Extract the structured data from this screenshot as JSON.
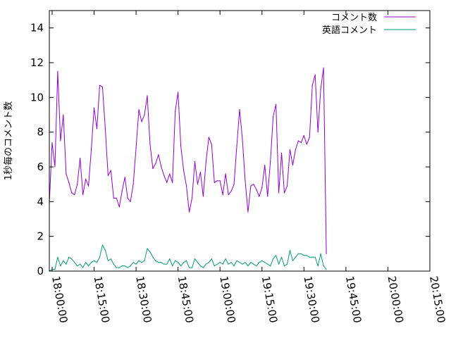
{
  "chart_data": {
    "type": "line",
    "title": "",
    "xlabel": "",
    "ylabel": "1秒毎のコメント数",
    "x_ticks": [
      "18:00:00",
      "18:15:00",
      "18:30:00",
      "18:45:00",
      "19:00:00",
      "19:15:00",
      "19:30:00",
      "19:45:00",
      "20:00:00",
      "20:15:00"
    ],
    "y_ticks": [
      "0",
      "2",
      "4",
      "6",
      "8",
      "10",
      "12",
      "14"
    ],
    "xlim": [
      "17:59:00",
      "20:15:00"
    ],
    "ylim": [
      0,
      15
    ],
    "legend_position": "top-right",
    "grid": false,
    "series": [
      {
        "name": "コメント数",
        "color": "#9400d3",
        "points": [
          [
            "17:59:00",
            3.9
          ],
          [
            "18:00:00",
            7.4
          ],
          [
            "18:01:00",
            6.0
          ],
          [
            "18:02:00",
            11.5
          ],
          [
            "18:03:00",
            7.5
          ],
          [
            "18:04:00",
            9.0
          ],
          [
            "18:05:00",
            5.6
          ],
          [
            "18:06:00",
            5.1
          ],
          [
            "18:07:00",
            4.5
          ],
          [
            "18:08:00",
            4.4
          ],
          [
            "18:09:00",
            5.0
          ],
          [
            "18:10:00",
            6.5
          ],
          [
            "18:11:00",
            4.4
          ],
          [
            "18:12:00",
            5.3
          ],
          [
            "18:13:00",
            4.9
          ],
          [
            "18:14:00",
            7.0
          ],
          [
            "18:15:00",
            9.4
          ],
          [
            "18:16:00",
            8.2
          ],
          [
            "18:17:00",
            10.7
          ],
          [
            "18:18:00",
            10.6
          ],
          [
            "18:19:00",
            8.2
          ],
          [
            "18:20:00",
            5.5
          ],
          [
            "18:21:00",
            5.8
          ],
          [
            "18:22:00",
            4.2
          ],
          [
            "18:23:00",
            4.2
          ],
          [
            "18:24:00",
            3.7
          ],
          [
            "18:25:00",
            4.6
          ],
          [
            "18:26:00",
            5.4
          ],
          [
            "18:27:00",
            4.2
          ],
          [
            "18:28:00",
            4.0
          ],
          [
            "18:29:00",
            5.0
          ],
          [
            "18:30:00",
            7.1
          ],
          [
            "18:31:00",
            9.3
          ],
          [
            "18:32:00",
            8.6
          ],
          [
            "18:33:00",
            9.0
          ],
          [
            "18:34:00",
            10.1
          ],
          [
            "18:35:00",
            7.3
          ],
          [
            "18:36:00",
            5.9
          ],
          [
            "18:37:00",
            6.2
          ],
          [
            "18:38:00",
            6.7
          ],
          [
            "18:39:00",
            6.0
          ],
          [
            "18:40:00",
            5.5
          ],
          [
            "18:41:00",
            5.1
          ],
          [
            "18:42:00",
            5.6
          ],
          [
            "18:43:00",
            5.1
          ],
          [
            "18:44:00",
            9.2
          ],
          [
            "18:45:00",
            10.3
          ],
          [
            "18:46:00",
            7.2
          ],
          [
            "18:47:00",
            5.8
          ],
          [
            "18:48:00",
            4.9
          ],
          [
            "18:49:00",
            3.4
          ],
          [
            "18:50:00",
            4.2
          ],
          [
            "18:51:00",
            6.3
          ],
          [
            "18:52:00",
            5.0
          ],
          [
            "18:53:00",
            5.7
          ],
          [
            "18:54:00",
            4.3
          ],
          [
            "18:55:00",
            6.3
          ],
          [
            "18:56:00",
            7.7
          ],
          [
            "18:57:00",
            7.3
          ],
          [
            "18:58:00",
            5.1
          ],
          [
            "18:59:00",
            5.2
          ],
          [
            "19:00:00",
            5.2
          ],
          [
            "19:01:00",
            4.4
          ],
          [
            "19:02:00",
            5.6
          ],
          [
            "19:03:00",
            4.4
          ],
          [
            "19:04:00",
            4.6
          ],
          [
            "19:05:00",
            5.0
          ],
          [
            "19:06:00",
            7.2
          ],
          [
            "19:07:00",
            9.3
          ],
          [
            "19:08:00",
            7.6
          ],
          [
            "19:09:00",
            5.2
          ],
          [
            "19:10:00",
            3.4
          ],
          [
            "19:11:00",
            4.9
          ],
          [
            "19:12:00",
            5.0
          ],
          [
            "19:13:00",
            4.7
          ],
          [
            "19:14:00",
            4.3
          ],
          [
            "19:15:00",
            4.8
          ],
          [
            "19:16:00",
            6.1
          ],
          [
            "19:17:00",
            4.3
          ],
          [
            "19:18:00",
            6.3
          ],
          [
            "19:19:00",
            8.9
          ],
          [
            "19:20:00",
            9.6
          ],
          [
            "19:21:00",
            4.5
          ],
          [
            "19:22:00",
            6.8
          ],
          [
            "19:23:00",
            4.5
          ],
          [
            "19:24:00",
            4.9
          ],
          [
            "19:25:00",
            7.0
          ],
          [
            "19:26:00",
            6.1
          ],
          [
            "19:27:00",
            7.0
          ],
          [
            "19:28:00",
            7.5
          ],
          [
            "19:29:00",
            7.4
          ],
          [
            "19:30:00",
            7.8
          ],
          [
            "19:31:00",
            7.3
          ],
          [
            "19:32:00",
            7.7
          ],
          [
            "19:33:00",
            10.7
          ],
          [
            "19:34:00",
            11.3
          ],
          [
            "19:35:00",
            8.0
          ],
          [
            "19:36:00",
            10.5
          ],
          [
            "19:37:00",
            11.7
          ],
          [
            "19:38:00",
            1.0
          ]
        ]
      },
      {
        "name": "英語コメント",
        "color": "#009e73",
        "points": [
          [
            "17:59:00",
            0.0
          ],
          [
            "18:00:00",
            0.1
          ],
          [
            "18:01:00",
            0.1
          ],
          [
            "18:02:00",
            0.8
          ],
          [
            "18:03:00",
            0.3
          ],
          [
            "18:04:00",
            0.6
          ],
          [
            "18:05:00",
            0.4
          ],
          [
            "18:06:00",
            0.8
          ],
          [
            "18:07:00",
            0.7
          ],
          [
            "18:08:00",
            0.5
          ],
          [
            "18:09:00",
            0.3
          ],
          [
            "18:10:00",
            0.4
          ],
          [
            "18:11:00",
            0.2
          ],
          [
            "18:12:00",
            0.5
          ],
          [
            "18:13:00",
            0.3
          ],
          [
            "18:14:00",
            0.5
          ],
          [
            "18:15:00",
            0.6
          ],
          [
            "18:16:00",
            0.5
          ],
          [
            "18:17:00",
            0.8
          ],
          [
            "18:18:00",
            1.5
          ],
          [
            "18:19:00",
            1.2
          ],
          [
            "18:20:00",
            0.6
          ],
          [
            "18:21:00",
            0.7
          ],
          [
            "18:22:00",
            0.4
          ],
          [
            "18:23:00",
            0.2
          ],
          [
            "18:24:00",
            0.2
          ],
          [
            "18:25:00",
            0.3
          ],
          [
            "18:26:00",
            0.3
          ],
          [
            "18:27:00",
            0.2
          ],
          [
            "18:28:00",
            0.3
          ],
          [
            "18:29:00",
            0.5
          ],
          [
            "18:30:00",
            0.4
          ],
          [
            "18:31:00",
            0.6
          ],
          [
            "18:32:00",
            0.5
          ],
          [
            "18:33:00",
            0.6
          ],
          [
            "18:34:00",
            1.3
          ],
          [
            "18:35:00",
            1.1
          ],
          [
            "18:36:00",
            0.8
          ],
          [
            "18:37:00",
            0.6
          ],
          [
            "18:38:00",
            0.5
          ],
          [
            "18:39:00",
            0.5
          ],
          [
            "18:40:00",
            0.4
          ],
          [
            "18:41:00",
            0.4
          ],
          [
            "18:42:00",
            0.7
          ],
          [
            "18:43:00",
            0.3
          ],
          [
            "18:44:00",
            0.6
          ],
          [
            "18:45:00",
            0.5
          ],
          [
            "18:46:00",
            0.3
          ],
          [
            "18:47:00",
            0.5
          ],
          [
            "18:48:00",
            0.6
          ],
          [
            "18:49:00",
            0.2
          ],
          [
            "18:50:00",
            0.2
          ],
          [
            "18:51:00",
            0.7
          ],
          [
            "18:52:00",
            0.5
          ],
          [
            "18:53:00",
            0.3
          ],
          [
            "18:54:00",
            0.2
          ],
          [
            "18:55:00",
            0.4
          ],
          [
            "18:56:00",
            0.5
          ],
          [
            "18:57:00",
            0.7
          ],
          [
            "18:58:00",
            0.3
          ],
          [
            "18:59:00",
            0.4
          ],
          [
            "19:00:00",
            0.5
          ],
          [
            "19:01:00",
            0.4
          ],
          [
            "19:02:00",
            0.7
          ],
          [
            "19:03:00",
            0.4
          ],
          [
            "19:04:00",
            0.5
          ],
          [
            "19:05:00",
            0.3
          ],
          [
            "19:06:00",
            0.6
          ],
          [
            "19:07:00",
            0.5
          ],
          [
            "19:08:00",
            0.4
          ],
          [
            "19:09:00",
            0.5
          ],
          [
            "19:10:00",
            0.3
          ],
          [
            "19:11:00",
            0.5
          ],
          [
            "19:12:00",
            0.4
          ],
          [
            "19:13:00",
            0.3
          ],
          [
            "19:14:00",
            0.5
          ],
          [
            "19:15:00",
            0.6
          ],
          [
            "19:16:00",
            0.5
          ],
          [
            "19:17:00",
            0.4
          ],
          [
            "19:18:00",
            0.3
          ],
          [
            "19:19:00",
            0.7
          ],
          [
            "19:20:00",
            0.9
          ],
          [
            "19:21:00",
            0.4
          ],
          [
            "19:22:00",
            0.8
          ],
          [
            "19:23:00",
            0.3
          ],
          [
            "19:24:00",
            0.4
          ],
          [
            "19:25:00",
            1.2
          ],
          [
            "19:26:00",
            0.6
          ],
          [
            "19:27:00",
            0.8
          ],
          [
            "19:28:00",
            1.0
          ],
          [
            "19:29:00",
            1.0
          ],
          [
            "19:30:00",
            0.9
          ],
          [
            "19:31:00",
            0.9
          ],
          [
            "19:32:00",
            0.8
          ],
          [
            "19:33:00",
            0.8
          ],
          [
            "19:34:00",
            0.8
          ],
          [
            "19:35:00",
            0.3
          ],
          [
            "19:36:00",
            1.0
          ],
          [
            "19:37:00",
            0.3
          ],
          [
            "19:38:00",
            0.1
          ]
        ]
      }
    ]
  }
}
